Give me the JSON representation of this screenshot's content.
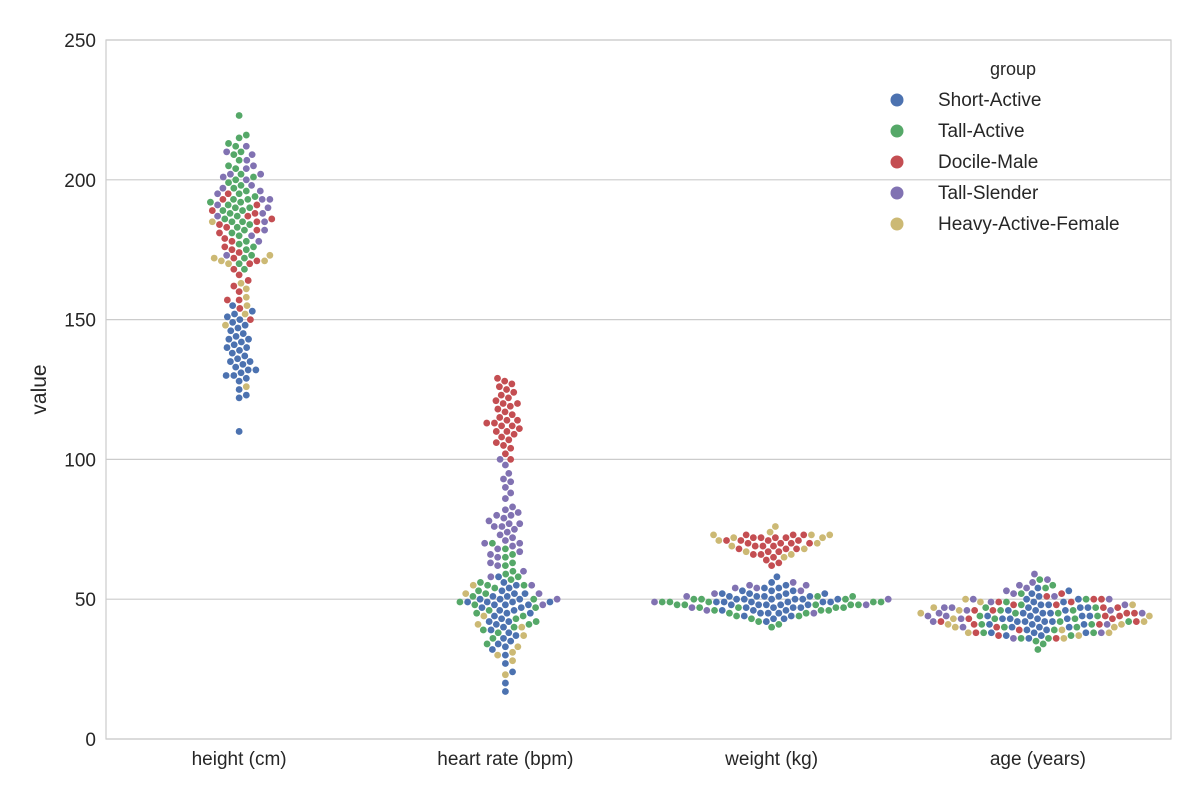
{
  "chart_data": {
    "type": "scatter",
    "subtype": "swarm",
    "title": "",
    "xlabel": "",
    "ylabel": "value",
    "categories": [
      "height (cm)",
      "heart rate (bpm)",
      "weight (kg)",
      "age (years)"
    ],
    "ylim": [
      0,
      250
    ],
    "yticks": [
      0,
      50,
      100,
      150,
      200,
      250
    ],
    "grid": "horizontal",
    "legend": {
      "title": "group",
      "placement": "top-right",
      "entries": [
        {
          "name": "Short-Active",
          "color": "#4c72b0"
        },
        {
          "name": "Tall-Active",
          "color": "#55a868"
        },
        {
          "name": "Docile-Male",
          "color": "#c44e52"
        },
        {
          "name": "Tall-Slender",
          "color": "#8172b2"
        },
        {
          "name": "Heavy-Active-Female",
          "color": "#ccb974"
        }
      ]
    },
    "series": [
      {
        "name": "Short-Active",
        "values": [
          [
            110,
            122,
            123,
            125,
            128,
            129,
            130,
            130,
            131,
            132,
            132,
            133,
            134,
            135,
            135,
            136,
            137,
            138,
            139,
            140,
            140,
            141,
            142,
            143,
            143,
            144,
            145,
            146,
            147,
            148,
            149,
            150,
            151,
            152,
            153,
            155
          ],
          [
            17,
            20,
            24,
            27,
            30,
            32,
            33,
            34,
            35,
            36,
            37,
            38,
            39,
            40,
            41,
            42,
            42,
            43,
            44,
            45,
            45,
            46,
            46,
            47,
            47,
            48,
            48,
            48,
            49,
            49,
            49,
            49,
            50,
            50,
            50,
            51,
            51,
            52,
            52,
            53,
            54,
            55,
            56,
            58
          ],
          [
            42,
            43,
            43,
            44,
            44,
            45,
            45,
            45,
            46,
            46,
            46,
            47,
            47,
            47,
            47,
            48,
            48,
            48,
            48,
            48,
            49,
            49,
            49,
            49,
            49,
            49,
            50,
            50,
            50,
            50,
            50,
            50,
            51,
            51,
            51,
            51,
            51,
            52,
            52,
            52,
            52,
            53,
            53,
            53,
            54,
            54,
            55,
            56,
            58
          ],
          [
            36,
            37,
            37,
            38,
            38,
            38,
            39,
            39,
            40,
            40,
            40,
            41,
            41,
            41,
            42,
            42,
            42,
            42,
            43,
            43,
            43,
            43,
            44,
            44,
            44,
            44,
            45,
            45,
            45,
            46,
            46,
            46,
            47,
            47,
            47,
            48,
            48,
            49,
            49,
            50,
            50,
            51,
            52,
            53,
            54
          ]
        ]
      },
      {
        "name": "Tall-Active",
        "values": [
          [
            168,
            170,
            172,
            173,
            175,
            176,
            177,
            178,
            180,
            181,
            182,
            183,
            184,
            185,
            185,
            186,
            187,
            188,
            189,
            189,
            190,
            190,
            191,
            192,
            192,
            193,
            193,
            194,
            195,
            196,
            197,
            198,
            199,
            200,
            201,
            202,
            204,
            205,
            207,
            209,
            210,
            212,
            213,
            215,
            216,
            223
          ],
          [
            34,
            36,
            38,
            39,
            40,
            41,
            42,
            43,
            44,
            45,
            46,
            47,
            48,
            49,
            50,
            51,
            52,
            53,
            54,
            55,
            55,
            56,
            57,
            58,
            59,
            60,
            62,
            63,
            65,
            66,
            68,
            70
          ],
          [
            40,
            41,
            42,
            43,
            44,
            44,
            45,
            45,
            46,
            46,
            46,
            47,
            47,
            47,
            47,
            48,
            48,
            48,
            48,
            48,
            49,
            49,
            49,
            49,
            49,
            50,
            50,
            50,
            51,
            51
          ],
          [
            32,
            34,
            35,
            36,
            36,
            37,
            38,
            38,
            39,
            40,
            40,
            41,
            41,
            42,
            42,
            43,
            43,
            44,
            44,
            45,
            45,
            46,
            46,
            47,
            47,
            48,
            49,
            50,
            52,
            54,
            55,
            57
          ]
        ]
      },
      {
        "name": "Docile-Male",
        "values": [
          [
            150,
            154,
            157,
            157,
            160,
            162,
            164,
            166,
            168,
            170,
            171,
            172,
            174,
            175,
            176,
            178,
            179,
            181,
            182,
            183,
            184,
            185,
            186,
            187,
            188,
            189,
            191,
            193,
            195
          ],
          [
            100,
            102,
            104,
            105,
            106,
            107,
            108,
            109,
            110,
            110,
            111,
            112,
            112,
            113,
            113,
            114,
            114,
            115,
            116,
            117,
            118,
            119,
            120,
            120,
            121,
            122,
            123,
            124,
            125,
            126,
            127,
            128,
            129
          ],
          [
            62,
            63,
            64,
            65,
            66,
            66,
            67,
            67,
            68,
            68,
            68,
            69,
            69,
            69,
            70,
            70,
            70,
            70,
            71,
            71,
            71,
            71,
            72,
            72,
            72,
            72,
            73,
            73,
            73
          ],
          [
            36,
            37,
            38,
            39,
            40,
            41,
            41,
            42,
            42,
            43,
            43,
            44,
            44,
            45,
            45,
            46,
            46,
            47,
            47,
            48,
            48,
            49,
            49,
            50,
            50,
            51,
            52
          ]
        ]
      },
      {
        "name": "Tall-Slender",
        "values": [
          [
            173,
            178,
            180,
            182,
            185,
            187,
            188,
            190,
            191,
            193,
            193,
            195,
            196,
            197,
            198,
            200,
            201,
            202,
            202,
            204,
            205,
            207,
            209,
            210,
            212
          ],
          [
            48,
            50,
            52,
            55,
            58,
            60,
            62,
            63,
            65,
            66,
            67,
            68,
            69,
            70,
            70,
            71,
            72,
            73,
            74,
            75,
            76,
            76,
            77,
            77,
            78,
            79,
            80,
            80,
            81,
            82,
            83,
            86,
            88,
            90,
            92,
            93,
            95,
            98,
            100
          ],
          [
            45,
            46,
            47,
            48,
            49,
            50,
            51,
            52,
            53,
            54,
            54,
            55,
            55,
            56
          ],
          [
            36,
            38,
            40,
            41,
            42,
            43,
            44,
            44,
            45,
            45,
            46,
            46,
            47,
            47,
            48,
            49,
            50,
            50,
            51,
            52,
            53,
            54,
            55,
            56,
            57,
            59
          ]
        ]
      },
      {
        "name": "Heavy-Active-Female",
        "values": [
          [
            126,
            148,
            152,
            155,
            158,
            161,
            163,
            170,
            171,
            171,
            172,
            173,
            185
          ],
          [
            23,
            28,
            30,
            31,
            33,
            37,
            40,
            41,
            44,
            52,
            55
          ],
          [
            65,
            66,
            67,
            68,
            69,
            70,
            71,
            72,
            72,
            73,
            73,
            73,
            74,
            76
          ],
          [
            36,
            37,
            38,
            38,
            39,
            40,
            40,
            41,
            41,
            42,
            43,
            44,
            45,
            46,
            47,
            48,
            49,
            50
          ]
        ]
      }
    ]
  }
}
